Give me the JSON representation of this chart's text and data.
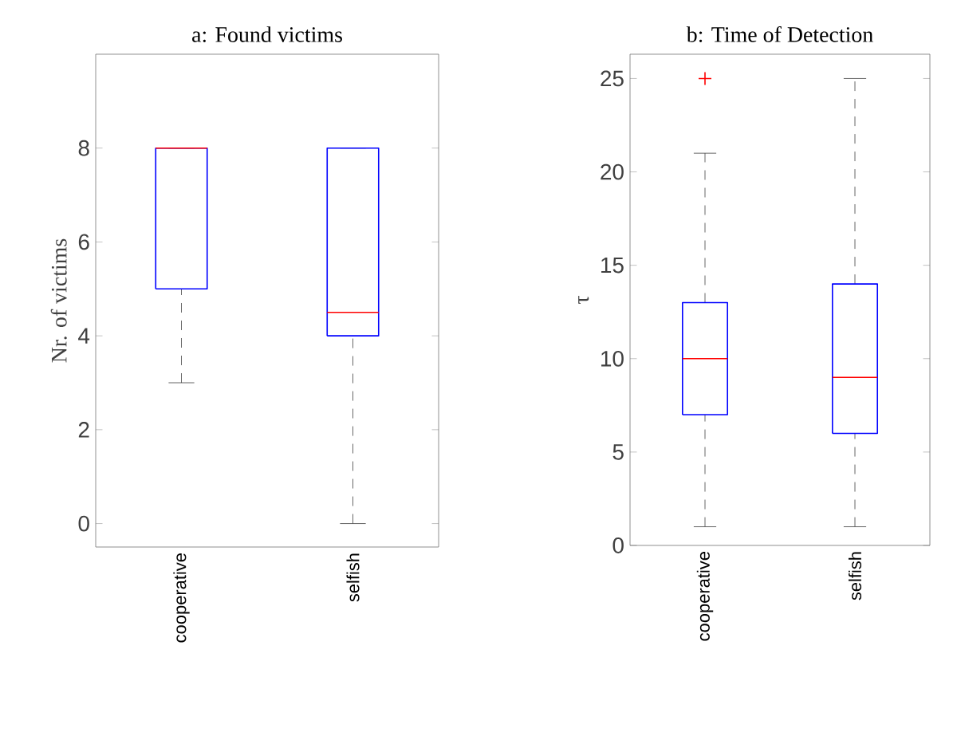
{
  "chart_data": [
    {
      "type": "box",
      "title": "a: Found victims",
      "ylabel": "Nr. of victims",
      "categories": [
        "cooperative",
        "selfish"
      ],
      "color": "#0000ff",
      "ylim": [
        -0.5,
        10
      ],
      "yticks": [
        0,
        2,
        4,
        6,
        8
      ],
      "boxes": [
        {
          "low": 3,
          "q1": 5,
          "median": 8,
          "q3": 8,
          "high": 8
        },
        {
          "low": 0,
          "q1": 4,
          "median": 4.5,
          "q3": 8,
          "high": 8
        }
      ]
    },
    {
      "type": "box",
      "title": "b: Time of Detection",
      "ylabel": "τ",
      "categories": [
        "cooperative",
        "selfish"
      ],
      "color": "#0000ff",
      "ylim": [
        0,
        26.3
      ],
      "yticks": [
        0,
        5,
        10,
        15,
        20,
        25
      ],
      "boxes": [
        {
          "low": 1,
          "q1": 7,
          "median": 10,
          "q3": 13,
          "high": 21,
          "outliers": [
            25
          ]
        },
        {
          "low": 1,
          "q1": 6,
          "median": 9,
          "q3": 14,
          "high": 25
        }
      ]
    }
  ]
}
